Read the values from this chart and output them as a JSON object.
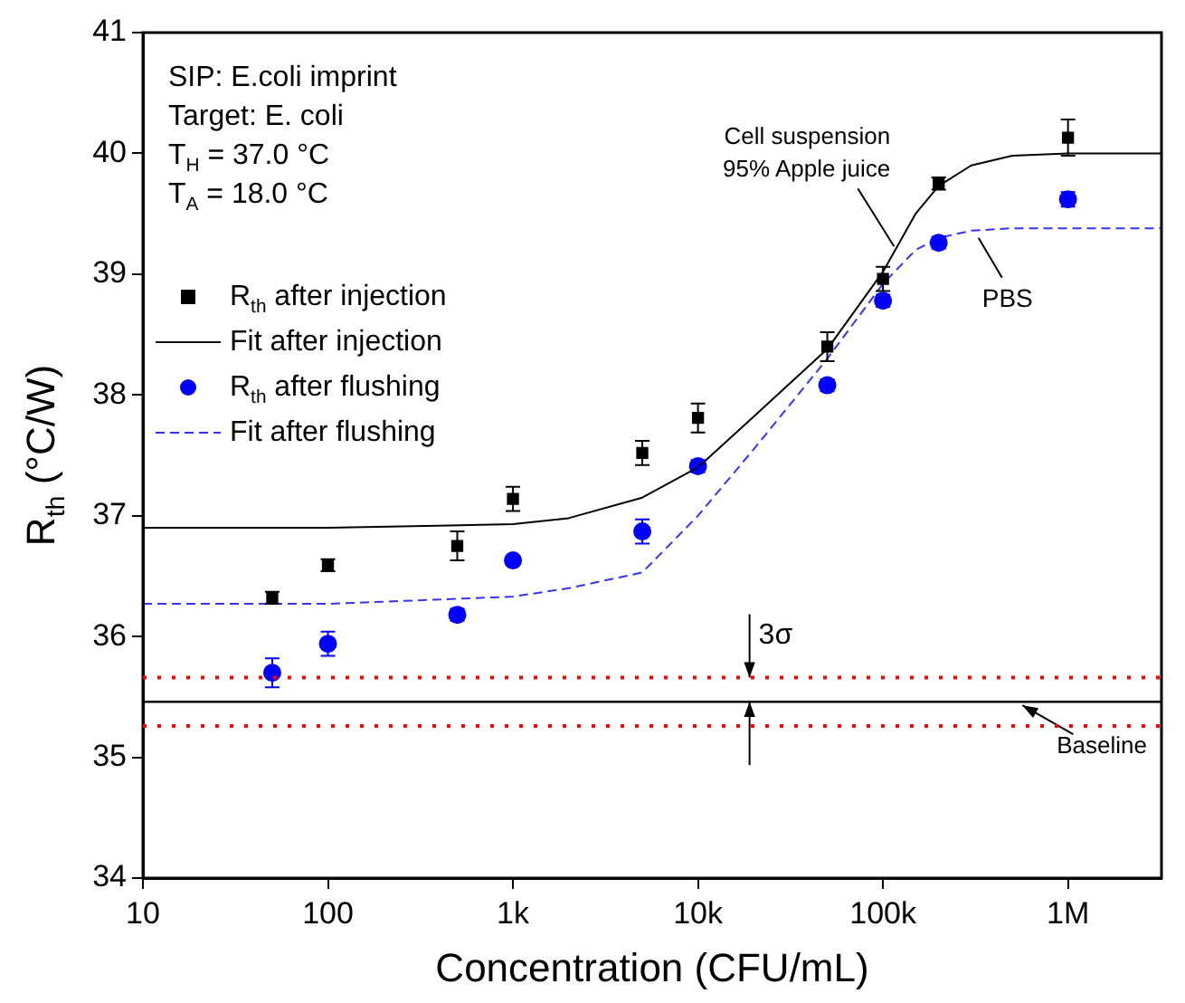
{
  "chart_data": {
    "type": "scatter",
    "xlabel": "Concentration (CFU/mL)",
    "ylabel": "R$_{th}$ (°C/W)",
    "log": "x",
    "xlim": [
      10,
      3200000
    ],
    "xticks": [
      10,
      100,
      {
        "value": 1000,
        "label": "1k"
      },
      {
        "value": 10000,
        "label": "10k"
      },
      {
        "value": 100000,
        "label": "100k"
      },
      {
        "value": 1000000,
        "label": "1M"
      }
    ],
    "ylim": [
      34,
      41
    ],
    "yticks": [
      34,
      35,
      36,
      37,
      38,
      39,
      40,
      41
    ],
    "grid": false,
    "legend": "top left",
    "series": [
      {
        "name": "R$_{th}$ after injection",
        "marker": "square",
        "color": "#000000",
        "x": [
          50,
          100,
          500,
          1000,
          5000,
          10000,
          50000,
          100000,
          200000,
          1000000
        ],
        "values": [
          36.32,
          36.59,
          36.75,
          37.14,
          37.52,
          37.81,
          38.4,
          38.96,
          39.75,
          40.13
        ],
        "errors": [
          0.05,
          0.05,
          0.12,
          0.1,
          0.1,
          0.12,
          0.12,
          0.1,
          0.05,
          0.15
        ]
      },
      {
        "name": "Fit after injection",
        "type": "line",
        "marker": "none",
        "line_style": "solid",
        "color": "#000000",
        "x": [
          10,
          100,
          1000,
          2000,
          5000,
          10000,
          20000,
          50000,
          100000,
          150000,
          200000,
          300000,
          500000,
          1000000,
          3200000
        ],
        "values": [
          36.9,
          36.9,
          36.93,
          36.98,
          37.15,
          37.4,
          37.82,
          38.38,
          39.02,
          39.5,
          39.73,
          39.9,
          39.98,
          40.0,
          40.0
        ]
      },
      {
        "name": "R$_{th}$ after flushing",
        "marker": "circle",
        "color": "#0000ff",
        "x": [
          50,
          100,
          500,
          1000,
          5000,
          10000,
          50000,
          100000,
          200000,
          1000000
        ],
        "values": [
          35.7,
          35.94,
          36.18,
          36.63,
          36.87,
          37.41,
          38.08,
          38.78,
          39.26,
          39.62
        ],
        "errors": [
          0.12,
          0.1,
          0.05,
          0.03,
          0.1,
          0.05,
          0.05,
          0.05,
          0.05,
          0.06
        ]
      },
      {
        "name": "Fit after flushing",
        "type": "line",
        "marker": "none",
        "line_style": "dashed",
        "color": "#3333ff",
        "x": [
          10,
          100,
          1000,
          2000,
          5000,
          10000,
          20000,
          50000,
          100000,
          150000,
          200000,
          300000,
          500000,
          1000000,
          3200000
        ],
        "values": [
          36.27,
          36.27,
          36.33,
          36.4,
          36.53,
          37.0,
          37.55,
          38.3,
          38.92,
          39.2,
          39.3,
          39.36,
          39.38,
          39.38,
          39.38
        ]
      }
    ],
    "ref_lines": [
      {
        "axis": "y",
        "value": 35.46,
        "label": "Baseline",
        "color": "#000000",
        "line_style": "solid"
      },
      {
        "axis": "y",
        "value": 35.66,
        "color": "#ff0000",
        "line_style": "dotted"
      },
      {
        "axis": "y",
        "value": 35.26,
        "color": "#ff0000",
        "line_style": "dotted"
      }
    ],
    "annotations": [
      "SIP: E.coli imprint",
      "Target: E. coli",
      "T$_{H}$ = 37.0 °C",
      "T$_{A}$ = 18.0 °C",
      {
        "text": "Cell suspension\n95% Apple juice",
        "x": 120000,
        "y": 39.2
      },
      {
        "text": "PBS",
        "x": 300000,
        "y": 39.36
      },
      {
        "text": "3σ",
        "x": 19000,
        "y": 35.66
      }
    ]
  }
}
